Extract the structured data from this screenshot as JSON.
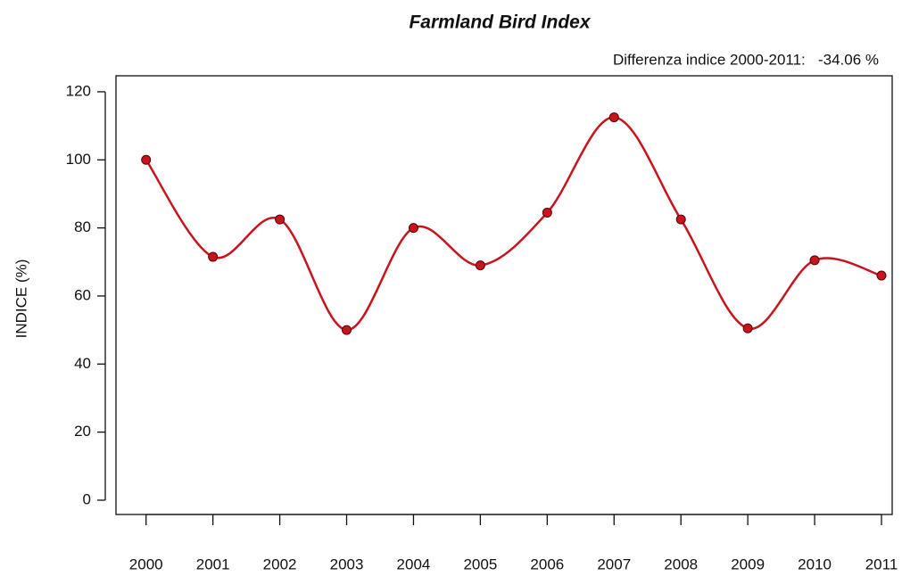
{
  "chart_data": {
    "type": "line",
    "title": "Farmland Bird Index",
    "subtitle": "Differenza indice 2000-2011:   -34.06 %",
    "ylabel": "INDICE (%)",
    "x": [
      2000,
      2001,
      2002,
      2003,
      2004,
      2005,
      2006,
      2007,
      2008,
      2009,
      2010,
      2011
    ],
    "series": [
      {
        "name": "Farmland Bird Index",
        "color": "#c8141e",
        "values": [
          100,
          71.5,
          82.5,
          50,
          80,
          69,
          84.5,
          112.5,
          82.5,
          50.5,
          70.5,
          66
        ]
      }
    ],
    "xlim": [
      1999.55,
      2011.16
    ],
    "xticks": [
      2000,
      2001,
      2002,
      2003,
      2004,
      2005,
      2006,
      2007,
      2008,
      2009,
      2010,
      2011
    ],
    "ylim": [
      -4.2,
      124.7
    ],
    "yticks": [
      0,
      20,
      40,
      60,
      80,
      100,
      120
    ],
    "smooth": true
  }
}
